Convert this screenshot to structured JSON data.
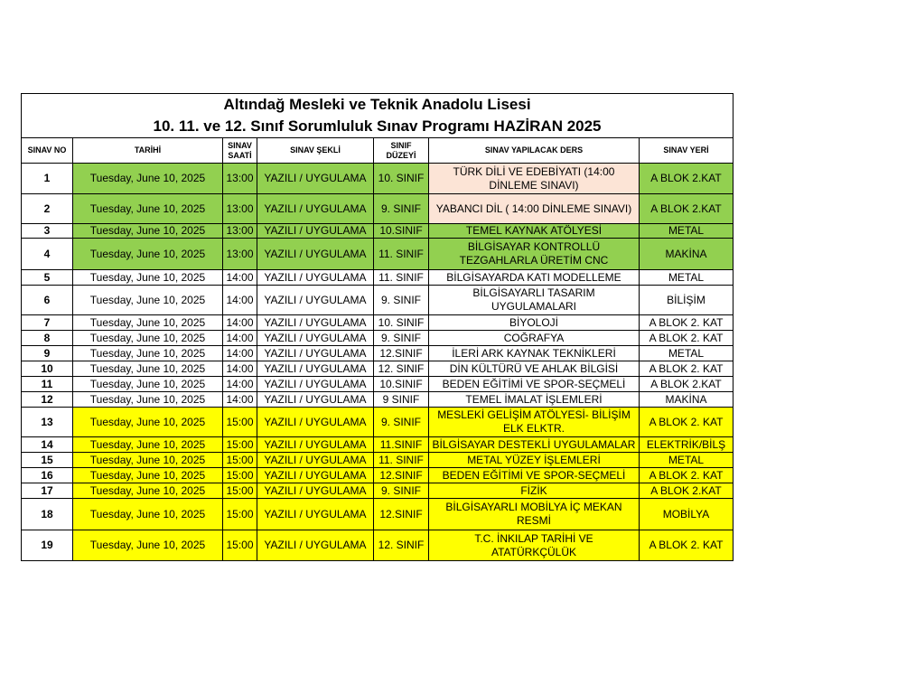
{
  "title_line1": "Altındağ Mesleki ve Teknik Anadolu Lisesi",
  "title_line2": "10. 11. ve 12. Sınıf Sorumluluk Sınav Programı HAZİRAN 2025",
  "headers": [
    "SINAV NO",
    "TARİHİ",
    "SINAV SAATİ",
    "SINAV ŞEKLİ",
    "SINIF DÜZEYİ",
    "SINAV YAPILACAK DERS",
    "SINAV YERİ"
  ],
  "colors": {
    "green": "#92d050",
    "yellow": "#ffff00",
    "salmon": "#fce4d6"
  },
  "rows": [
    {
      "no": "1",
      "date": "Tuesday, June 10, 2025",
      "time": "13:00",
      "type": "YAZILI / UYGULAMA",
      "level": "10. SINIF",
      "course": "TÜRK DİLİ VE EDEBİYATI (14:00 DİNLEME SINAVI)",
      "place": "A BLOK 2.KAT",
      "color": "green",
      "course_color": "salmon"
    },
    {
      "no": "2",
      "date": "Tuesday, June 10, 2025",
      "time": "13:00",
      "type": "YAZILI / UYGULAMA",
      "level": "9. SINIF",
      "course": "YABANCI DİL ( 14:00 DİNLEME SINAVI)",
      "place": "A BLOK 2.KAT",
      "color": "green",
      "course_color": "salmon"
    },
    {
      "no": "3",
      "date": "Tuesday, June 10, 2025",
      "time": "13:00",
      "type": "YAZILI / UYGULAMA",
      "level": "10.SINIF",
      "course": "TEMEL KAYNAK ATÖLYESİ",
      "place": "METAL",
      "color": "green"
    },
    {
      "no": "4",
      "date": "Tuesday, June 10, 2025",
      "time": "13:00",
      "type": "YAZILI / UYGULAMA",
      "level": "11. SINIF",
      "course": "BİLGİSAYAR KONTROLLÜ TEZGAHLARLA ÜRETİM CNC",
      "place": "MAKİNA",
      "color": "green"
    },
    {
      "no": "5",
      "date": "Tuesday, June 10, 2025",
      "time": "14:00",
      "type": "YAZILI / UYGULAMA",
      "level": "11. SINIF",
      "course": "BİLGİSAYARDA KATI MODELLEME",
      "place": "METAL",
      "color": "white"
    },
    {
      "no": "6",
      "date": "Tuesday, June 10, 2025",
      "time": "14:00",
      "type": "YAZILI / UYGULAMA",
      "level": "9. SINIF",
      "course": "BİLGİSAYARLI TASARIM UYGULAMALARI",
      "place": "BİLİŞİM",
      "color": "white"
    },
    {
      "no": "7",
      "date": "Tuesday, June 10, 2025",
      "time": "14:00",
      "type": "YAZILI / UYGULAMA",
      "level": "10. SINIF",
      "course": "BİYOLOJİ",
      "place": "A BLOK 2. KAT",
      "color": "white"
    },
    {
      "no": "8",
      "date": "Tuesday, June 10, 2025",
      "time": "14:00",
      "type": "YAZILI / UYGULAMA",
      "level": "9. SINIF",
      "course": "COĞRAFYA",
      "place": "A BLOK 2. KAT",
      "color": "white"
    },
    {
      "no": "9",
      "date": "Tuesday, June 10, 2025",
      "time": "14:00",
      "type": "YAZILI / UYGULAMA",
      "level": "12.SINIF",
      "course": "İLERİ ARK KAYNAK TEKNİKLERİ",
      "place": "METAL",
      "color": "white"
    },
    {
      "no": "10",
      "date": "Tuesday, June 10, 2025",
      "time": "14:00",
      "type": "YAZILI / UYGULAMA",
      "level": "12. SINIF",
      "course": "DİN KÜLTÜRÜ VE AHLAK BİLGİSİ",
      "place": "A BLOK 2. KAT",
      "color": "white"
    },
    {
      "no": "11",
      "date": "Tuesday, June 10, 2025",
      "time": "14:00",
      "type": "YAZILI / UYGULAMA",
      "level": "10.SINIF",
      "course": "BEDEN EĞİTİMİ VE SPOR-SEÇMELİ",
      "place": "A BLOK 2.KAT",
      "color": "white"
    },
    {
      "no": "12",
      "date": "Tuesday, June 10, 2025",
      "time": "14:00",
      "type": "YAZILI / UYGULAMA",
      "level": "9 SINIF",
      "course": "TEMEL İMALAT İŞLEMLERİ",
      "place": "MAKİNA",
      "color": "white"
    },
    {
      "no": "13",
      "date": "Tuesday, June 10, 2025",
      "time": "15:00",
      "type": "YAZILI / UYGULAMA",
      "level": "9. SINIF",
      "course": "MESLEKİ GELİŞİM ATÖLYESİ- BİLİŞİM ELK ELKTR.",
      "place": "A BLOK 2. KAT",
      "color": "yellow"
    },
    {
      "no": "14",
      "date": "Tuesday, June 10, 2025",
      "time": "15:00",
      "type": "YAZILI / UYGULAMA",
      "level": "11.SINIF",
      "course": "BİLGİSAYAR DESTEKLİ UYGULAMALAR",
      "place": "ELEKTRİK/BİLŞ",
      "color": "yellow"
    },
    {
      "no": "15",
      "date": "Tuesday, June 10, 2025",
      "time": "15:00",
      "type": "YAZILI / UYGULAMA",
      "level": "11. SINIF",
      "course": "METAL YÜZEY İŞLEMLERİ",
      "place": "METAL",
      "color": "yellow"
    },
    {
      "no": "16",
      "date": "Tuesday, June 10, 2025",
      "time": "15:00",
      "type": "YAZILI / UYGULAMA",
      "level": "12.SINIF",
      "course": "BEDEN EĞİTİMİ VE SPOR-SEÇMELİ",
      "place": "A BLOK 2. KAT",
      "color": "yellow"
    },
    {
      "no": "17",
      "date": "Tuesday, June 10, 2025",
      "time": "15:00",
      "type": "YAZILI / UYGULAMA",
      "level": "9. SINIF",
      "course": "FİZİK",
      "place": "A BLOK 2.KAT",
      "color": "yellow"
    },
    {
      "no": "18",
      "date": "Tuesday, June 10, 2025",
      "time": "15:00",
      "type": "YAZILI / UYGULAMA",
      "level": "12.SINIF",
      "course": "BİLGİSAYARLI MOBİLYA İÇ MEKAN RESMİ",
      "place": "MOBİLYA",
      "color": "yellow"
    },
    {
      "no": "19",
      "date": "Tuesday, June 10, 2025",
      "time": "15:00",
      "type": "YAZILI / UYGULAMA",
      "level": "12. SINIF",
      "course": "T.C. İNKILAP TARİHİ VE ATATÜRKÇÜLÜK",
      "place": "A BLOK 2. KAT",
      "color": "yellow"
    }
  ]
}
